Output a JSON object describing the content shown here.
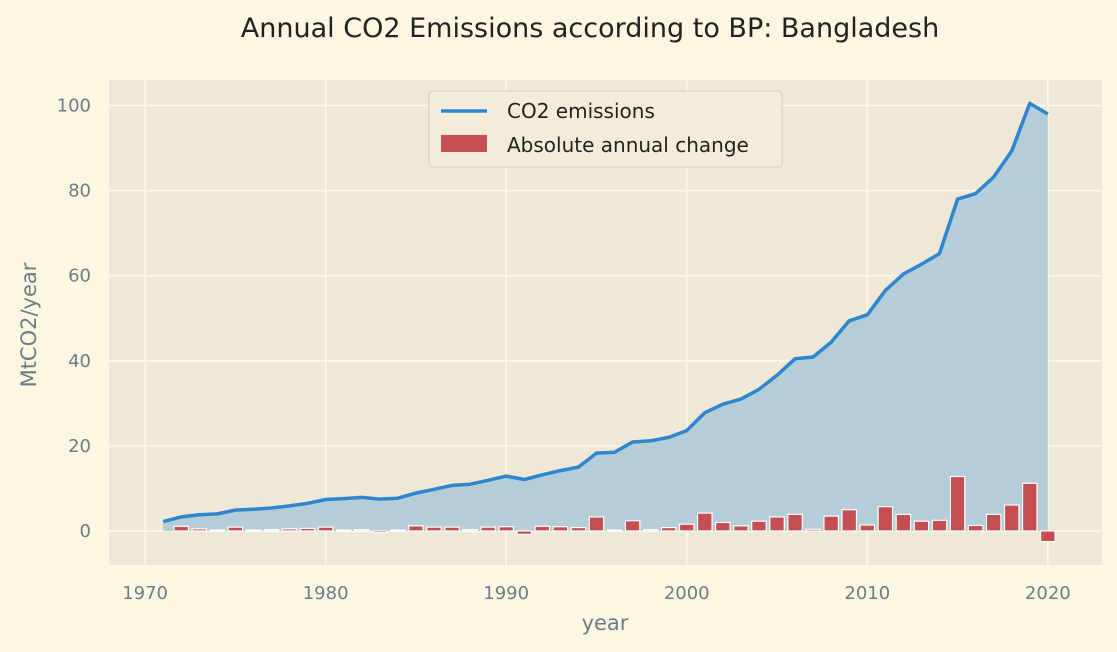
{
  "chart_data": {
    "type": "line",
    "title": "Annual CO2 Emissions according to BP: Bangladesh",
    "xlabel": "year",
    "ylabel": "MtCO2/year",
    "xlim": [
      1968,
      2023
    ],
    "ylim": [
      -8,
      106
    ],
    "xticks": [
      1970,
      1980,
      1990,
      2000,
      2010,
      2020
    ],
    "yticks": [
      0,
      20,
      40,
      60,
      80,
      100
    ],
    "grid": true,
    "legend_position": "top-center",
    "series": [
      {
        "name": "CO2 emissions",
        "kind": "line-with-area",
        "color": "#2e86cf",
        "fill_color": "#a9c8d6",
        "x": [
          1971,
          1972,
          1973,
          1974,
          1975,
          1976,
          1977,
          1978,
          1979,
          1980,
          1981,
          1982,
          1983,
          1984,
          1985,
          1986,
          1987,
          1988,
          1989,
          1990,
          1991,
          1992,
          1993,
          1994,
          1995,
          1996,
          1997,
          1998,
          1999,
          2000,
          2001,
          2002,
          2003,
          2004,
          2005,
          2006,
          2007,
          2008,
          2009,
          2010,
          2011,
          2012,
          2013,
          2014,
          2015,
          2016,
          2017,
          2018,
          2019,
          2020
        ],
        "y": [
          2.2,
          3.3,
          3.8,
          4.0,
          4.9,
          5.1,
          5.4,
          5.9,
          6.5,
          7.4,
          7.6,
          7.9,
          7.5,
          7.7,
          8.9,
          9.8,
          10.7,
          11.0,
          11.9,
          12.9,
          12.1,
          13.2,
          14.2,
          15.0,
          18.3,
          18.5,
          20.9,
          21.2,
          22.0,
          23.6,
          27.8,
          29.8,
          31.0,
          33.3,
          36.6,
          40.5,
          40.9,
          44.4,
          49.4,
          50.8,
          56.5,
          60.4,
          62.7,
          65.2,
          78.0,
          79.3,
          83.2,
          89.3,
          100.5,
          98.0
        ]
      },
      {
        "name": "Absolute annual change",
        "kind": "bar",
        "color": "#c44e52",
        "x": [
          1972,
          1973,
          1974,
          1975,
          1976,
          1977,
          1978,
          1979,
          1980,
          1981,
          1982,
          1983,
          1984,
          1985,
          1986,
          1987,
          1988,
          1989,
          1990,
          1991,
          1992,
          1993,
          1994,
          1995,
          1996,
          1997,
          1998,
          1999,
          2000,
          2001,
          2002,
          2003,
          2004,
          2005,
          2006,
          2007,
          2008,
          2009,
          2010,
          2011,
          2012,
          2013,
          2014,
          2015,
          2016,
          2017,
          2018,
          2019,
          2020
        ],
        "y": [
          1.1,
          0.5,
          0.2,
          0.9,
          0.2,
          0.3,
          0.5,
          0.6,
          0.9,
          0.2,
          0.3,
          -0.4,
          0.2,
          1.2,
          0.9,
          0.9,
          0.3,
          0.9,
          1.0,
          -0.8,
          1.1,
          1.0,
          0.8,
          3.3,
          0.2,
          2.4,
          0.3,
          0.8,
          1.6,
          4.2,
          2.0,
          1.2,
          2.3,
          3.3,
          3.9,
          0.4,
          3.5,
          5.0,
          1.4,
          5.7,
          3.9,
          2.3,
          2.5,
          12.8,
          1.3,
          3.9,
          6.1,
          11.2,
          -2.5
        ]
      }
    ]
  }
}
